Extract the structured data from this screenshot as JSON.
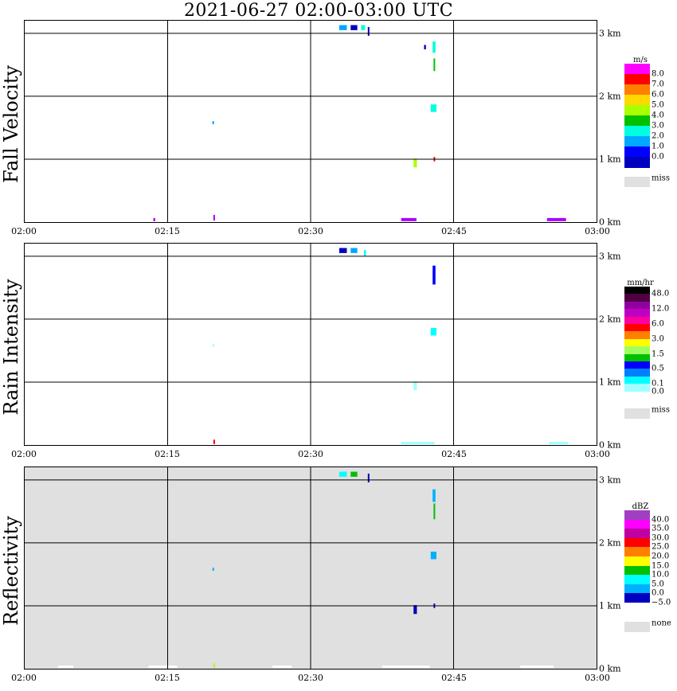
{
  "title": "2021-06-27   02:00-03:00 UTC",
  "chart_data": [
    {
      "type": "heatmap",
      "panel_label": "Fall Velocity",
      "x_ticks": [
        "02:00",
        "02:15",
        "02:30",
        "02:45",
        "03:00"
      ],
      "height_ticks": [
        "3 km",
        "2 km",
        "1 km",
        "0 km"
      ],
      "background": "#ffffff",
      "colorbar": {
        "unit": "m/s",
        "levels": [
          "8.0",
          "7.0",
          "6.0",
          "5.0",
          "4.0",
          "3.0",
          "2.0",
          "1.0",
          "0.0"
        ],
        "colors": [
          "#ff00ff",
          "#ff0000",
          "#ff8000",
          "#ffd800",
          "#aaff00",
          "#00c000",
          "#00ffe0",
          "#00a8ff",
          "#0000ff",
          "#0000c0"
        ],
        "miss_label": "miss",
        "miss_color": "#e0e0e0"
      },
      "echoes": [
        {
          "t": 33.0,
          "h": 3.09,
          "w": 0.8,
          "dh": 0.08,
          "color": "#00a8ff"
        },
        {
          "t": 34.2,
          "h": 3.09,
          "w": 0.7,
          "dh": 0.08,
          "color": "#0000c0"
        },
        {
          "t": 35.3,
          "h": 3.09,
          "w": 0.4,
          "dh": 0.08,
          "color": "#00ffe0"
        },
        {
          "t": 36.0,
          "h": 3.03,
          "w": 0.15,
          "dh": 0.14,
          "color": "#0000c0"
        },
        {
          "t": 41.9,
          "h": 2.78,
          "w": 0.2,
          "dh": 0.07,
          "color": "#0000c0"
        },
        {
          "t": 42.8,
          "h": 2.78,
          "w": 0.3,
          "dh": 0.18,
          "color": "#00ffe0"
        },
        {
          "t": 42.9,
          "h": 2.5,
          "w": 0.15,
          "dh": 0.2,
          "color": "#00c000"
        },
        {
          "t": 42.6,
          "h": 1.81,
          "w": 0.6,
          "dh": 0.12,
          "color": "#00ffe0"
        },
        {
          "t": 19.7,
          "h": 1.58,
          "w": 0.15,
          "dh": 0.05,
          "color": "#00a8ff"
        },
        {
          "t": 40.8,
          "h": 0.94,
          "w": 0.35,
          "dh": 0.14,
          "color": "#aaff00"
        },
        {
          "t": 42.9,
          "h": 1.0,
          "w": 0.12,
          "dh": 0.07,
          "color": "#ff0000"
        },
        {
          "t": 13.5,
          "h": 0.04,
          "w": 0.2,
          "dh": 0.05,
          "color": "#aa00ff"
        },
        {
          "t": 19.8,
          "h": 0.07,
          "w": 0.15,
          "dh": 0.09,
          "color": "#aa00ff"
        },
        {
          "t": 39.5,
          "h": 0.04,
          "w": 1.6,
          "dh": 0.05,
          "color": "#aa00ff"
        },
        {
          "t": 54.8,
          "h": 0.04,
          "w": 2.0,
          "dh": 0.05,
          "color": "#aa00ff"
        }
      ]
    },
    {
      "type": "heatmap",
      "panel_label": "Rain Intensity",
      "x_ticks": [
        "02:00",
        "02:15",
        "02:30",
        "02:45",
        "03:00"
      ],
      "height_ticks": [
        "3 km",
        "2 km",
        "1 km",
        "0 km"
      ],
      "background": "#ffffff",
      "colorbar": {
        "unit": "mm/hr",
        "levels": [
          "48.0",
          "",
          "12.0",
          "",
          "6.0",
          "",
          "3.0",
          "",
          "1.5",
          "",
          "0.5",
          "",
          "0.1",
          "0.0"
        ],
        "colors": [
          "#000000",
          "#500040",
          "#9000a0",
          "#c000c0",
          "#ff00a0",
          "#ff0000",
          "#ff8000",
          "#ffff00",
          "#a0ff60",
          "#00c000",
          "#0000ff",
          "#0080ff",
          "#00ffff",
          "#a0ffff",
          "#ffffff"
        ],
        "miss_label": "miss",
        "miss_color": "#e0e0e0"
      },
      "echoes": [
        {
          "t": 33.0,
          "h": 3.09,
          "w": 0.8,
          "dh": 0.08,
          "color": "#0000c0"
        },
        {
          "t": 34.2,
          "h": 3.09,
          "w": 0.7,
          "dh": 0.08,
          "color": "#00a8ff"
        },
        {
          "t": 35.6,
          "h": 3.05,
          "w": 0.2,
          "dh": 0.1,
          "color": "#00ffff"
        },
        {
          "t": 42.8,
          "h": 2.7,
          "w": 0.3,
          "dh": 0.3,
          "color": "#0000ff"
        },
        {
          "t": 42.6,
          "h": 1.8,
          "w": 0.6,
          "dh": 0.12,
          "color": "#00ffff"
        },
        {
          "t": 19.7,
          "h": 1.58,
          "w": 0.15,
          "dh": 0.05,
          "color": "#a0ffff"
        },
        {
          "t": 40.8,
          "h": 0.94,
          "w": 0.35,
          "dh": 0.14,
          "color": "#a0ffff"
        },
        {
          "t": 19.8,
          "h": 0.05,
          "w": 0.15,
          "dh": 0.07,
          "color": "#ff0000"
        },
        {
          "t": 39.5,
          "h": 0.03,
          "w": 3.5,
          "dh": 0.04,
          "color": "#a0ffff"
        },
        {
          "t": 55.0,
          "h": 0.03,
          "w": 2.0,
          "dh": 0.04,
          "color": "#a0ffff"
        }
      ]
    },
    {
      "type": "heatmap",
      "panel_label": "Reflectivity",
      "x_ticks": [
        "02:00",
        "02:15",
        "02:30",
        "02:45",
        "03:00"
      ],
      "height_ticks": [
        "3 km",
        "2 km",
        "1 km",
        "0 km"
      ],
      "background": "#e0e0e0",
      "colorbar": {
        "unit": "dBZ",
        "levels": [
          "40.0",
          "35.0",
          "30.0",
          "25.0",
          "20.0",
          "15.0",
          "10.0",
          "5.0",
          "0.0",
          "−5.0"
        ],
        "colors": [
          "#a040c0",
          "#ff00ff",
          "#c000a0",
          "#ff0000",
          "#ff8000",
          "#ffff00",
          "#00c000",
          "#00ffff",
          "#00b0ff",
          "#0000c0",
          "#ffffff"
        ],
        "miss_label": "none",
        "miss_color": "#e0e0e0"
      },
      "echoes": [
        {
          "t": 33.0,
          "h": 3.09,
          "w": 0.8,
          "dh": 0.08,
          "color": "#00ffff"
        },
        {
          "t": 34.2,
          "h": 3.09,
          "w": 0.7,
          "dh": 0.08,
          "color": "#00c000"
        },
        {
          "t": 36.0,
          "h": 3.03,
          "w": 0.15,
          "dh": 0.14,
          "color": "#0000c0"
        },
        {
          "t": 42.8,
          "h": 2.75,
          "w": 0.3,
          "dh": 0.2,
          "color": "#00b0ff"
        },
        {
          "t": 42.9,
          "h": 2.5,
          "w": 0.15,
          "dh": 0.25,
          "color": "#00c000"
        },
        {
          "t": 42.6,
          "h": 1.8,
          "w": 0.6,
          "dh": 0.12,
          "color": "#00b0ff"
        },
        {
          "t": 19.7,
          "h": 1.58,
          "w": 0.15,
          "dh": 0.05,
          "color": "#00b0ff"
        },
        {
          "t": 40.8,
          "h": 0.94,
          "w": 0.35,
          "dh": 0.14,
          "color": "#0000c0"
        },
        {
          "t": 42.9,
          "h": 1.0,
          "w": 0.12,
          "dh": 0.07,
          "color": "#0000c0"
        },
        {
          "t": 19.8,
          "h": 0.05,
          "w": 0.15,
          "dh": 0.07,
          "color": "#aaff00"
        },
        {
          "t": 3.5,
          "h": 0.03,
          "w": 1.6,
          "dh": 0.04,
          "color": "#ffffff"
        },
        {
          "t": 13.0,
          "h": 0.03,
          "w": 3.0,
          "dh": 0.04,
          "color": "#ffffff"
        },
        {
          "t": 26.0,
          "h": 0.03,
          "w": 2.0,
          "dh": 0.04,
          "color": "#ffffff"
        },
        {
          "t": 37.5,
          "h": 0.03,
          "w": 5.0,
          "dh": 0.04,
          "color": "#ffffff"
        },
        {
          "t": 52.0,
          "h": 0.03,
          "w": 3.5,
          "dh": 0.04,
          "color": "#ffffff"
        }
      ]
    }
  ]
}
